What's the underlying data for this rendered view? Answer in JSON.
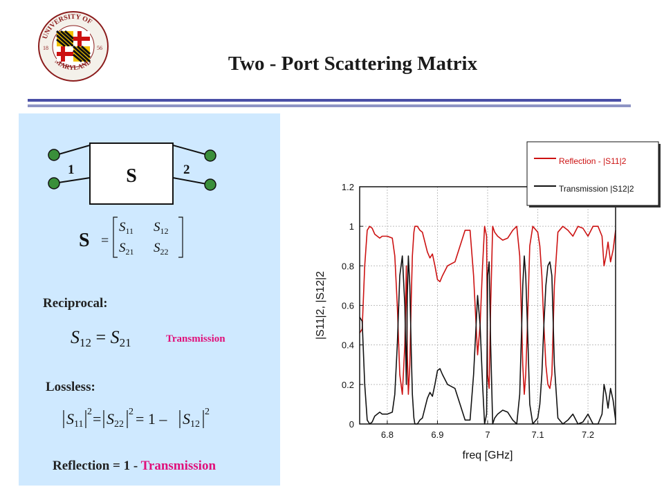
{
  "slide": {
    "title": "Two - Port Scattering Matrix",
    "logo_text": "UNIVERSITY OF MARYLAND",
    "logo_year_left": "18",
    "logo_year_right": "56"
  },
  "panel": {
    "block_label": "S",
    "port1_label": "1",
    "port2_label": "2",
    "matrix_symbol": "S",
    "matrix_equals": "=",
    "matrix_entries": [
      "S11",
      "S12",
      "S21",
      "S22"
    ],
    "reciprocal_label": "Reciprocal:",
    "reciprocal_eq": "S12 = S21",
    "transmission_label": "Transmission",
    "lossless_label": "Lossless:",
    "lossless_eq": "|S11|^2 = |S22|^2 = 1 - |S12|^2",
    "reflection_prefix": "Reflection = 1 - ",
    "reflection_suffix": "Transmission"
  },
  "colors": {
    "reflection": "#cc1111",
    "transmission": "#111111",
    "panel_bg": "#cfe9ff",
    "accent_pink": "#e0107a",
    "rule": "#4a4fa6"
  },
  "chart_data": {
    "type": "line",
    "xlabel": "freq [GHz]",
    "ylabel": "|S11|2, |S12|2",
    "xlim": [
      6.745,
      7.255
    ],
    "ylim": [
      0,
      1.2
    ],
    "x_ticks": [
      6.8,
      6.9,
      7.0,
      7.1,
      7.2
    ],
    "x_tick_labels": [
      "6.8",
      "6.9",
      "7",
      "7.1",
      "7.2"
    ],
    "y_ticks": [
      0,
      0.2,
      0.4,
      0.6,
      0.8,
      1.0,
      1.2
    ],
    "y_tick_labels": [
      "0",
      "0.2",
      "0.4",
      "0.6",
      "0.8",
      "1",
      "1.2"
    ],
    "grid": true,
    "legend_position": "top-right",
    "series": [
      {
        "name": "Reflection - |S11|2",
        "color": "#cc1111",
        "x": [
          6.745,
          6.75,
          6.755,
          6.76,
          6.765,
          6.77,
          6.775,
          6.785,
          6.79,
          6.8,
          6.81,
          6.815,
          6.82,
          6.825,
          6.83,
          6.835,
          6.838,
          6.84,
          6.842,
          6.845,
          6.848,
          6.85,
          6.853,
          6.855,
          6.86,
          6.865,
          6.87,
          6.875,
          6.88,
          6.885,
          6.89,
          6.895,
          6.9,
          6.905,
          6.91,
          6.92,
          6.935,
          6.945,
          6.955,
          6.965,
          6.972,
          6.976,
          6.98,
          6.985,
          6.99,
          6.994,
          6.998,
          7.0,
          7.003,
          7.006,
          7.01,
          7.014,
          7.02,
          7.03,
          7.04,
          7.05,
          7.058,
          7.064,
          7.068,
          7.07,
          7.073,
          7.076,
          7.08,
          7.084,
          7.09,
          7.1,
          7.104,
          7.108,
          7.112,
          7.116,
          7.12,
          7.124,
          7.128,
          7.133,
          7.14,
          7.15,
          7.16,
          7.17,
          7.18,
          7.19,
          7.2,
          7.21,
          7.22,
          7.228,
          7.232,
          7.236,
          7.24,
          7.245,
          7.25,
          7.255
        ],
        "y": [
          0.46,
          0.48,
          0.8,
          0.98,
          1.0,
          0.99,
          0.96,
          0.94,
          0.95,
          0.95,
          0.94,
          0.85,
          0.6,
          0.25,
          0.15,
          0.4,
          0.8,
          0.35,
          0.15,
          0.3,
          0.65,
          0.85,
          0.97,
          1.0,
          1.0,
          0.98,
          0.97,
          0.92,
          0.87,
          0.84,
          0.86,
          0.8,
          0.73,
          0.72,
          0.75,
          0.8,
          0.82,
          0.9,
          0.98,
          0.98,
          0.75,
          0.55,
          0.35,
          0.5,
          0.8,
          1.0,
          0.95,
          0.25,
          0.18,
          0.6,
          1.0,
          0.97,
          0.95,
          0.93,
          0.94,
          0.98,
          1.0,
          0.85,
          0.5,
          0.3,
          0.15,
          0.25,
          0.55,
          0.9,
          1.0,
          0.97,
          0.9,
          0.75,
          0.5,
          0.3,
          0.2,
          0.18,
          0.25,
          0.7,
          0.97,
          1.0,
          0.98,
          0.95,
          1.0,
          0.99,
          0.95,
          1.0,
          1.0,
          0.95,
          0.8,
          0.85,
          0.92,
          0.82,
          0.88,
          0.98
        ]
      },
      {
        "name": "Transmission |S12|2",
        "color": "#111111",
        "x": [
          6.745,
          6.75,
          6.755,
          6.76,
          6.765,
          6.77,
          6.775,
          6.785,
          6.79,
          6.8,
          6.81,
          6.815,
          6.82,
          6.825,
          6.83,
          6.835,
          6.838,
          6.84,
          6.842,
          6.845,
          6.848,
          6.85,
          6.853,
          6.855,
          6.86,
          6.865,
          6.87,
          6.875,
          6.88,
          6.885,
          6.89,
          6.895,
          6.9,
          6.905,
          6.91,
          6.92,
          6.935,
          6.945,
          6.955,
          6.965,
          6.972,
          6.976,
          6.98,
          6.985,
          6.99,
          6.994,
          6.998,
          7.0,
          7.003,
          7.006,
          7.01,
          7.014,
          7.02,
          7.03,
          7.04,
          7.05,
          7.058,
          7.064,
          7.068,
          7.07,
          7.073,
          7.076,
          7.08,
          7.084,
          7.09,
          7.1,
          7.104,
          7.108,
          7.112,
          7.116,
          7.12,
          7.124,
          7.128,
          7.133,
          7.14,
          7.15,
          7.16,
          7.17,
          7.18,
          7.19,
          7.2,
          7.21,
          7.22,
          7.228,
          7.232,
          7.236,
          7.24,
          7.245,
          7.25,
          7.255
        ],
        "y": [
          0.54,
          0.52,
          0.2,
          0.02,
          0.0,
          0.01,
          0.04,
          0.06,
          0.05,
          0.05,
          0.06,
          0.15,
          0.4,
          0.75,
          0.85,
          0.6,
          0.2,
          0.65,
          0.85,
          0.7,
          0.35,
          0.15,
          0.03,
          0.0,
          0.0,
          0.02,
          0.03,
          0.08,
          0.13,
          0.16,
          0.14,
          0.2,
          0.27,
          0.28,
          0.25,
          0.2,
          0.18,
          0.1,
          0.02,
          0.02,
          0.25,
          0.45,
          0.65,
          0.5,
          0.2,
          0.0,
          0.05,
          0.75,
          0.82,
          0.4,
          0.0,
          0.03,
          0.05,
          0.07,
          0.06,
          0.02,
          0.0,
          0.15,
          0.5,
          0.7,
          0.85,
          0.75,
          0.45,
          0.1,
          0.0,
          0.03,
          0.1,
          0.25,
          0.5,
          0.7,
          0.8,
          0.82,
          0.75,
          0.3,
          0.03,
          0.0,
          0.02,
          0.05,
          0.0,
          0.01,
          0.05,
          0.0,
          0.0,
          0.05,
          0.2,
          0.15,
          0.08,
          0.18,
          0.12,
          0.02
        ]
      }
    ]
  }
}
